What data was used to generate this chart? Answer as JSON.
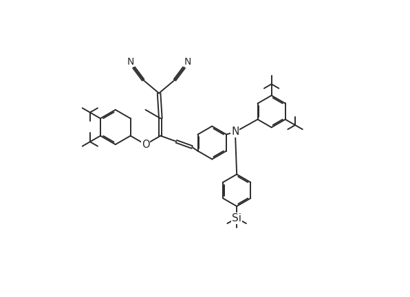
{
  "bg_color": "#ffffff",
  "line_color": "#2a2a2a",
  "line_width": 1.4,
  "font_size": 9.5,
  "fig_width": 5.96,
  "fig_height": 4.32,
  "hr": 0.55,
  "xlim": [
    0,
    10
  ],
  "ylim": [
    0,
    7.25
  ]
}
